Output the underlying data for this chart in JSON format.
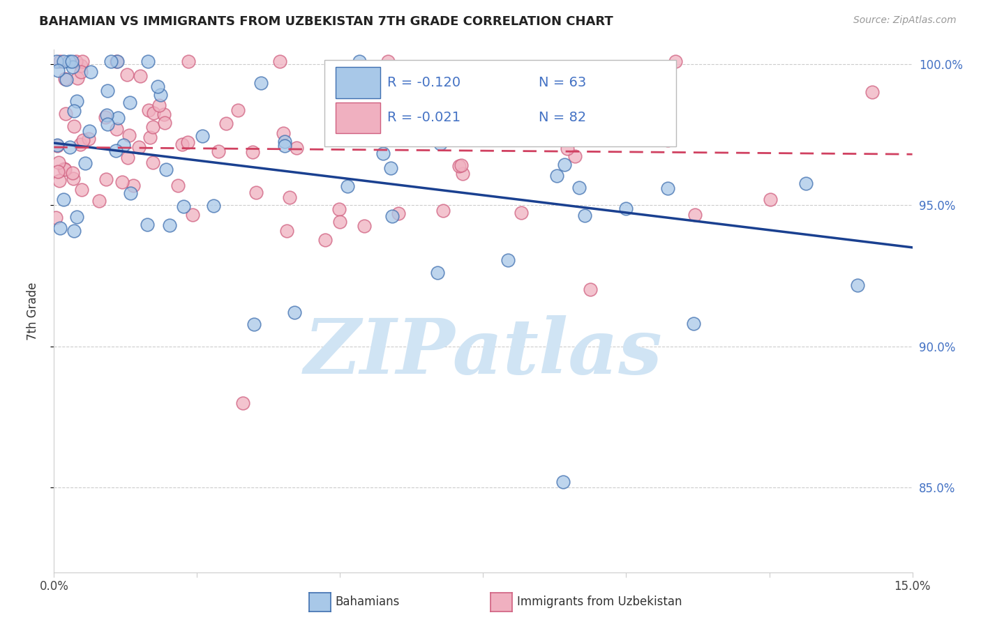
{
  "title": "BAHAMIAN VS IMMIGRANTS FROM UZBEKISTAN 7TH GRADE CORRELATION CHART",
  "source": "Source: ZipAtlas.com",
  "ylabel": "7th Grade",
  "xlim": [
    0.0,
    0.15
  ],
  "ylim": [
    0.82,
    1.005
  ],
  "xtick_vals": [
    0.0,
    0.025,
    0.05,
    0.075,
    0.1,
    0.125,
    0.15
  ],
  "xtick_labels": [
    "0.0%",
    "",
    "",
    "",
    "",
    "",
    "15.0%"
  ],
  "ytick_vals": [
    0.85,
    0.9,
    0.95,
    1.0
  ],
  "ytick_labels": [
    "85.0%",
    "90.0%",
    "95.0%",
    "100.0%"
  ],
  "blue_face": "#a8c8e8",
  "blue_edge": "#4070b0",
  "pink_face": "#f0b0c0",
  "pink_edge": "#d06080",
  "blue_line_color": "#1a4090",
  "pink_line_color": "#d04060",
  "label_color": "#4472c4",
  "grid_color": "#cccccc",
  "watermark": "ZIPatlas",
  "watermark_color": "#d0e4f4",
  "legend_label_blue": "Bahamians",
  "legend_label_pink": "Immigrants from Uzbekistan",
  "blue_R_str": "-0.120",
  "blue_N_str": "63",
  "pink_R_str": "-0.021",
  "pink_N_str": "82",
  "blue_trend": [
    0.972,
    0.935
  ],
  "pink_trend": [
    0.9705,
    0.968
  ],
  "seed": 999
}
